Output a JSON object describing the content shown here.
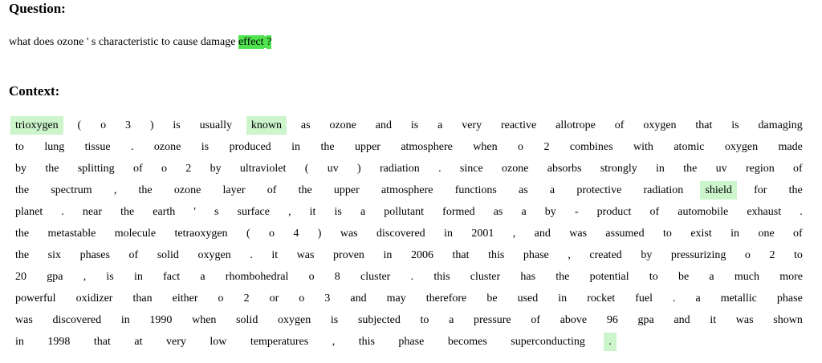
{
  "question_heading": "Question:",
  "context_heading": "Context:",
  "colors": {
    "strong_highlight": "#4fe34f",
    "light_highlight": "#ccf5cc"
  },
  "question_tokens": [
    {
      "t": "what",
      "hl": ""
    },
    {
      "t": "does",
      "hl": ""
    },
    {
      "t": "ozone",
      "hl": ""
    },
    {
      "t": "'",
      "hl": ""
    },
    {
      "t": "s",
      "hl": ""
    },
    {
      "t": "characteristic",
      "hl": ""
    },
    {
      "t": "to",
      "hl": ""
    },
    {
      "t": "cause",
      "hl": ""
    },
    {
      "t": "damage",
      "hl": ""
    },
    {
      "t": "effect",
      "hl": "strong"
    },
    {
      "t": "?",
      "hl": "strong"
    }
  ],
  "context_lines": [
    [
      {
        "t": "trioxygen",
        "hl": "light"
      },
      {
        "t": "(",
        "hl": ""
      },
      {
        "t": "o",
        "hl": ""
      },
      {
        "t": "3",
        "hl": ""
      },
      {
        "t": ")",
        "hl": ""
      },
      {
        "t": "is",
        "hl": ""
      },
      {
        "t": "usually",
        "hl": ""
      },
      {
        "t": "known",
        "hl": "light"
      },
      {
        "t": "as",
        "hl": ""
      },
      {
        "t": "ozone",
        "hl": ""
      },
      {
        "t": "and",
        "hl": ""
      },
      {
        "t": "is",
        "hl": ""
      },
      {
        "t": "a",
        "hl": ""
      },
      {
        "t": "very",
        "hl": ""
      },
      {
        "t": "reactive",
        "hl": ""
      },
      {
        "t": "allotrope",
        "hl": ""
      },
      {
        "t": "of",
        "hl": ""
      },
      {
        "t": "oxygen",
        "hl": ""
      },
      {
        "t": "that",
        "hl": ""
      },
      {
        "t": "is",
        "hl": ""
      },
      {
        "t": "damaging",
        "hl": ""
      }
    ],
    [
      {
        "t": "to",
        "hl": ""
      },
      {
        "t": "lung",
        "hl": ""
      },
      {
        "t": "tissue",
        "hl": ""
      },
      {
        "t": ".",
        "hl": ""
      },
      {
        "t": "ozone",
        "hl": ""
      },
      {
        "t": "is",
        "hl": ""
      },
      {
        "t": "produced",
        "hl": ""
      },
      {
        "t": "in",
        "hl": ""
      },
      {
        "t": "the",
        "hl": ""
      },
      {
        "t": "upper",
        "hl": ""
      },
      {
        "t": "atmosphere",
        "hl": ""
      },
      {
        "t": "when",
        "hl": ""
      },
      {
        "t": "o",
        "hl": ""
      },
      {
        "t": "2",
        "hl": ""
      },
      {
        "t": "combines",
        "hl": ""
      },
      {
        "t": "with",
        "hl": ""
      },
      {
        "t": "atomic",
        "hl": ""
      },
      {
        "t": "oxygen",
        "hl": ""
      },
      {
        "t": "made",
        "hl": ""
      }
    ],
    [
      {
        "t": "by",
        "hl": ""
      },
      {
        "t": "the",
        "hl": ""
      },
      {
        "t": "splitting",
        "hl": ""
      },
      {
        "t": "of",
        "hl": ""
      },
      {
        "t": "o",
        "hl": ""
      },
      {
        "t": "2",
        "hl": ""
      },
      {
        "t": "by",
        "hl": ""
      },
      {
        "t": "ultraviolet",
        "hl": ""
      },
      {
        "t": "(",
        "hl": ""
      },
      {
        "t": "uv",
        "hl": ""
      },
      {
        "t": ")",
        "hl": ""
      },
      {
        "t": "radiation",
        "hl": ""
      },
      {
        "t": ".",
        "hl": ""
      },
      {
        "t": "since",
        "hl": ""
      },
      {
        "t": "ozone",
        "hl": ""
      },
      {
        "t": "absorbs",
        "hl": ""
      },
      {
        "t": "strongly",
        "hl": ""
      },
      {
        "t": "in",
        "hl": ""
      },
      {
        "t": "the",
        "hl": ""
      },
      {
        "t": "uv",
        "hl": ""
      },
      {
        "t": "region",
        "hl": ""
      },
      {
        "t": "of",
        "hl": ""
      }
    ],
    [
      {
        "t": "the",
        "hl": ""
      },
      {
        "t": "spectrum",
        "hl": ""
      },
      {
        "t": ",",
        "hl": ""
      },
      {
        "t": "the",
        "hl": ""
      },
      {
        "t": "ozone",
        "hl": ""
      },
      {
        "t": "layer",
        "hl": ""
      },
      {
        "t": "of",
        "hl": ""
      },
      {
        "t": "the",
        "hl": ""
      },
      {
        "t": "upper",
        "hl": ""
      },
      {
        "t": "atmosphere",
        "hl": ""
      },
      {
        "t": "functions",
        "hl": ""
      },
      {
        "t": "as",
        "hl": ""
      },
      {
        "t": "a",
        "hl": ""
      },
      {
        "t": "protective",
        "hl": ""
      },
      {
        "t": "radiation",
        "hl": ""
      },
      {
        "t": "shield",
        "hl": "light"
      },
      {
        "t": "for",
        "hl": ""
      },
      {
        "t": "the",
        "hl": ""
      }
    ],
    [
      {
        "t": "planet",
        "hl": ""
      },
      {
        "t": ".",
        "hl": ""
      },
      {
        "t": "near",
        "hl": ""
      },
      {
        "t": "the",
        "hl": ""
      },
      {
        "t": "earth",
        "hl": ""
      },
      {
        "t": "'",
        "hl": ""
      },
      {
        "t": "s",
        "hl": ""
      },
      {
        "t": "surface",
        "hl": ""
      },
      {
        "t": ",",
        "hl": ""
      },
      {
        "t": "it",
        "hl": ""
      },
      {
        "t": "is",
        "hl": ""
      },
      {
        "t": "a",
        "hl": ""
      },
      {
        "t": "pollutant",
        "hl": ""
      },
      {
        "t": "formed",
        "hl": ""
      },
      {
        "t": "as",
        "hl": ""
      },
      {
        "t": "a",
        "hl": ""
      },
      {
        "t": "by",
        "hl": ""
      },
      {
        "t": "-",
        "hl": ""
      },
      {
        "t": "product",
        "hl": ""
      },
      {
        "t": "of",
        "hl": ""
      },
      {
        "t": "automobile",
        "hl": ""
      },
      {
        "t": "exhaust",
        "hl": ""
      },
      {
        "t": ".",
        "hl": ""
      }
    ],
    [
      {
        "t": "the",
        "hl": ""
      },
      {
        "t": "metastable",
        "hl": ""
      },
      {
        "t": "molecule",
        "hl": ""
      },
      {
        "t": "tetraoxygen",
        "hl": ""
      },
      {
        "t": "(",
        "hl": ""
      },
      {
        "t": "o",
        "hl": ""
      },
      {
        "t": "4",
        "hl": ""
      },
      {
        "t": ")",
        "hl": ""
      },
      {
        "t": "was",
        "hl": ""
      },
      {
        "t": "discovered",
        "hl": ""
      },
      {
        "t": "in",
        "hl": ""
      },
      {
        "t": "2001",
        "hl": ""
      },
      {
        "t": ",",
        "hl": ""
      },
      {
        "t": "and",
        "hl": ""
      },
      {
        "t": "was",
        "hl": ""
      },
      {
        "t": "assumed",
        "hl": ""
      },
      {
        "t": "to",
        "hl": ""
      },
      {
        "t": "exist",
        "hl": ""
      },
      {
        "t": "in",
        "hl": ""
      },
      {
        "t": "one",
        "hl": ""
      },
      {
        "t": "of",
        "hl": ""
      }
    ],
    [
      {
        "t": "the",
        "hl": ""
      },
      {
        "t": "six",
        "hl": ""
      },
      {
        "t": "phases",
        "hl": ""
      },
      {
        "t": "of",
        "hl": ""
      },
      {
        "t": "solid",
        "hl": ""
      },
      {
        "t": "oxygen",
        "hl": ""
      },
      {
        "t": ".",
        "hl": ""
      },
      {
        "t": "it",
        "hl": ""
      },
      {
        "t": "was",
        "hl": ""
      },
      {
        "t": "proven",
        "hl": ""
      },
      {
        "t": "in",
        "hl": ""
      },
      {
        "t": "2006",
        "hl": ""
      },
      {
        "t": "that",
        "hl": ""
      },
      {
        "t": "this",
        "hl": ""
      },
      {
        "t": "phase",
        "hl": ""
      },
      {
        "t": ",",
        "hl": ""
      },
      {
        "t": "created",
        "hl": ""
      },
      {
        "t": "by",
        "hl": ""
      },
      {
        "t": "pressurizing",
        "hl": ""
      },
      {
        "t": "o",
        "hl": ""
      },
      {
        "t": "2",
        "hl": ""
      },
      {
        "t": "to",
        "hl": ""
      }
    ],
    [
      {
        "t": "20",
        "hl": ""
      },
      {
        "t": "gpa",
        "hl": ""
      },
      {
        "t": ",",
        "hl": ""
      },
      {
        "t": "is",
        "hl": ""
      },
      {
        "t": "in",
        "hl": ""
      },
      {
        "t": "fact",
        "hl": ""
      },
      {
        "t": "a",
        "hl": ""
      },
      {
        "t": "rhombohedral",
        "hl": ""
      },
      {
        "t": "o",
        "hl": ""
      },
      {
        "t": "8",
        "hl": ""
      },
      {
        "t": "cluster",
        "hl": ""
      },
      {
        "t": ".",
        "hl": ""
      },
      {
        "t": "this",
        "hl": ""
      },
      {
        "t": "cluster",
        "hl": ""
      },
      {
        "t": "has",
        "hl": ""
      },
      {
        "t": "the",
        "hl": ""
      },
      {
        "t": "potential",
        "hl": ""
      },
      {
        "t": "to",
        "hl": ""
      },
      {
        "t": "be",
        "hl": ""
      },
      {
        "t": "a",
        "hl": ""
      },
      {
        "t": "much",
        "hl": ""
      },
      {
        "t": "more",
        "hl": ""
      }
    ],
    [
      {
        "t": "powerful",
        "hl": ""
      },
      {
        "t": "oxidizer",
        "hl": ""
      },
      {
        "t": "than",
        "hl": ""
      },
      {
        "t": "either",
        "hl": ""
      },
      {
        "t": "o",
        "hl": ""
      },
      {
        "t": "2",
        "hl": ""
      },
      {
        "t": "or",
        "hl": ""
      },
      {
        "t": "o",
        "hl": ""
      },
      {
        "t": "3",
        "hl": ""
      },
      {
        "t": "and",
        "hl": ""
      },
      {
        "t": "may",
        "hl": ""
      },
      {
        "t": "therefore",
        "hl": ""
      },
      {
        "t": "be",
        "hl": ""
      },
      {
        "t": "used",
        "hl": ""
      },
      {
        "t": "in",
        "hl": ""
      },
      {
        "t": "rocket",
        "hl": ""
      },
      {
        "t": "fuel",
        "hl": ""
      },
      {
        "t": ".",
        "hl": ""
      },
      {
        "t": "a",
        "hl": ""
      },
      {
        "t": "metallic",
        "hl": ""
      },
      {
        "t": "phase",
        "hl": ""
      }
    ],
    [
      {
        "t": "was",
        "hl": ""
      },
      {
        "t": "discovered",
        "hl": ""
      },
      {
        "t": "in",
        "hl": ""
      },
      {
        "t": "1990",
        "hl": ""
      },
      {
        "t": "when",
        "hl": ""
      },
      {
        "t": "solid",
        "hl": ""
      },
      {
        "t": "oxygen",
        "hl": ""
      },
      {
        "t": "is",
        "hl": ""
      },
      {
        "t": "subjected",
        "hl": ""
      },
      {
        "t": "to",
        "hl": ""
      },
      {
        "t": "a",
        "hl": ""
      },
      {
        "t": "pressure",
        "hl": ""
      },
      {
        "t": "of",
        "hl": ""
      },
      {
        "t": "above",
        "hl": ""
      },
      {
        "t": "96",
        "hl": ""
      },
      {
        "t": "gpa",
        "hl": ""
      },
      {
        "t": "and",
        "hl": ""
      },
      {
        "t": "it",
        "hl": ""
      },
      {
        "t": "was",
        "hl": ""
      },
      {
        "t": "shown",
        "hl": ""
      }
    ],
    [
      {
        "t": "in",
        "hl": ""
      },
      {
        "t": "1998",
        "hl": ""
      },
      {
        "t": "that",
        "hl": ""
      },
      {
        "t": "at",
        "hl": ""
      },
      {
        "t": "very",
        "hl": ""
      },
      {
        "t": "low",
        "hl": ""
      },
      {
        "t": "temperatures",
        "hl": ""
      },
      {
        "t": ",",
        "hl": ""
      },
      {
        "t": "this",
        "hl": ""
      },
      {
        "t": "phase",
        "hl": ""
      },
      {
        "t": "becomes",
        "hl": ""
      },
      {
        "t": "superconducting",
        "hl": ""
      },
      {
        "t": ".",
        "hl": "light"
      }
    ]
  ]
}
